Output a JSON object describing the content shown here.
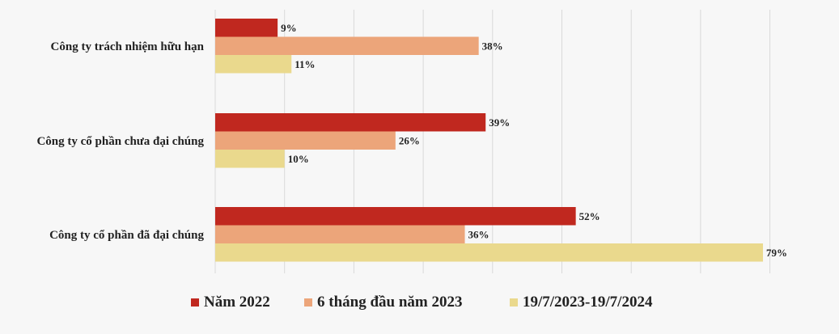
{
  "chart_data": {
    "type": "bar",
    "orientation": "horizontal",
    "title": "",
    "xlabel": "",
    "ylabel": "",
    "xlim": [
      0,
      100
    ],
    "grid": true,
    "legend": "bottom",
    "categories": [
      "Công ty trách nhiệm hữu hạn",
      "Công ty cổ phần chưa đại chúng",
      "Công ty cổ phần đã đại chúng"
    ],
    "series": [
      {
        "name": "Năm 2022",
        "color": "#c0281f",
        "values": [
          9,
          39,
          52
        ]
      },
      {
        "name": "6 tháng đầu năm 2023",
        "color": "#eca57a",
        "values": [
          38,
          26,
          36
        ]
      },
      {
        "name": "19/7/2023-19/7/2024",
        "color": "#ead98d",
        "values": [
          11,
          10,
          79
        ]
      }
    ],
    "value_suffix": "%"
  }
}
